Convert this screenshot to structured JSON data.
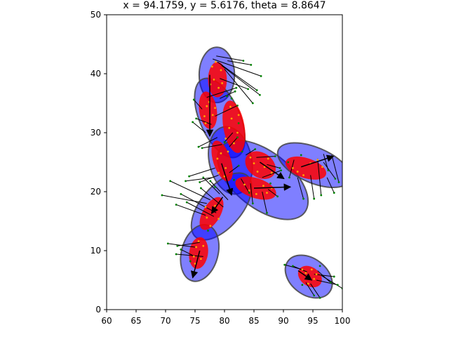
{
  "chart_data": {
    "type": "scatter",
    "title": "x = 94.1759, y = 5.6176, theta = 8.8647",
    "xlabel": "",
    "ylabel": "",
    "xlim": [
      60,
      100
    ],
    "ylim": [
      0,
      50
    ],
    "xticks": [
      "60",
      "65",
      "70",
      "75",
      "80",
      "85",
      "90",
      "95",
      "100"
    ],
    "yticks": [
      "0",
      "10",
      "20",
      "30",
      "40",
      "50"
    ],
    "colors": {
      "outer_fill": "#0000ff",
      "outer_edge": "#444444",
      "inner_fill": "#ff0000",
      "point_color": "#ffa500",
      "green_color": "#008000",
      "arrow_color": "#000000"
    },
    "outer_ellipses": [
      {
        "cx": 78.7,
        "cy": 39.8,
        "rx": 3.0,
        "ry": 4.7,
        "angle": 0
      },
      {
        "cx": 79.2,
        "cy": 32.5,
        "rx": 3.4,
        "ry": 7.2,
        "angle": -24
      },
      {
        "cx": 81.0,
        "cy": 25.3,
        "rx": 3.6,
        "ry": 5.8,
        "angle": -12
      },
      {
        "cx": 86.5,
        "cy": 22.0,
        "rx": 4.8,
        "ry": 9.0,
        "angle": -52
      },
      {
        "cx": 95.2,
        "cy": 24.5,
        "rx": 3.0,
        "ry": 6.6,
        "angle": -67
      },
      {
        "cx": 79.5,
        "cy": 17.5,
        "rx": 3.5,
        "ry": 6.8,
        "angle": 40
      },
      {
        "cx": 75.8,
        "cy": 9.6,
        "rx": 3.1,
        "ry": 4.9,
        "angle": 15
      },
      {
        "cx": 94.3,
        "cy": 5.6,
        "rx": 3.1,
        "ry": 4.4,
        "angle": -53
      }
    ],
    "inner_ellipses": [
      {
        "cx": 78.8,
        "cy": 39.0,
        "rx": 1.6,
        "ry": 3.0,
        "angle": 0
      },
      {
        "cx": 77.2,
        "cy": 33.8,
        "rx": 1.5,
        "ry": 3.2,
        "angle": -8
      },
      {
        "cx": 81.6,
        "cy": 31.0,
        "rx": 1.8,
        "ry": 4.5,
        "angle": -10
      },
      {
        "cx": 79.6,
        "cy": 25.2,
        "rx": 1.5,
        "ry": 3.6,
        "angle": -18
      },
      {
        "cx": 86.1,
        "cy": 24.5,
        "rx": 2.1,
        "ry": 2.8,
        "angle": -55
      },
      {
        "cx": 85.3,
        "cy": 20.6,
        "rx": 1.7,
        "ry": 3.6,
        "angle": -72
      },
      {
        "cx": 93.8,
        "cy": 24.0,
        "rx": 1.7,
        "ry": 3.6,
        "angle": -72
      },
      {
        "cx": 77.8,
        "cy": 16.3,
        "rx": 1.5,
        "ry": 3.1,
        "angle": 30
      },
      {
        "cx": 75.6,
        "cy": 9.6,
        "rx": 1.6,
        "ry": 2.7,
        "angle": 8
      },
      {
        "cx": 94.5,
        "cy": 5.6,
        "rx": 1.6,
        "ry": 2.2,
        "angle": -55
      }
    ],
    "arrows": [
      {
        "x1": 75.8,
        "y1": 10.0,
        "x2": 74.6,
        "y2": 5.4
      },
      {
        "x1": 77.5,
        "y1": 39.8,
        "x2": 77.5,
        "y2": 29.4
      },
      {
        "x1": 79.5,
        "y1": 24.8,
        "x2": 81.2,
        "y2": 19.4
      },
      {
        "x1": 79.7,
        "y1": 19.1,
        "x2": 77.8,
        "y2": 16.3
      },
      {
        "x1": 85.0,
        "y1": 20.6,
        "x2": 91.2,
        "y2": 20.8
      },
      {
        "x1": 93.0,
        "y1": 24.2,
        "x2": 98.5,
        "y2": 26.0
      },
      {
        "x1": 92.5,
        "y1": 6.6,
        "x2": 94.8,
        "y2": 5.0
      },
      {
        "x1": 86.0,
        "y1": 25.0,
        "x2": 90.1,
        "y2": 22.2
      }
    ],
    "points": [
      [
        78.2,
        39.0
      ],
      [
        79.4,
        40.6
      ],
      [
        77.9,
        41.2
      ],
      [
        79.0,
        37.6
      ],
      [
        78.5,
        42.0
      ],
      [
        79.6,
        38.4
      ],
      [
        77.6,
        38.2
      ],
      [
        77.0,
        34.5
      ],
      [
        76.6,
        32.8
      ],
      [
        78.0,
        33.0
      ],
      [
        77.4,
        35.2
      ],
      [
        76.8,
        31.6
      ],
      [
        78.4,
        34.2
      ],
      [
        81.2,
        32.4
      ],
      [
        82.2,
        30.0
      ],
      [
        81.6,
        28.2
      ],
      [
        80.8,
        30.8
      ],
      [
        82.4,
        33.0
      ],
      [
        81.0,
        34.4
      ],
      [
        80.2,
        29.0
      ],
      [
        79.4,
        26.5
      ],
      [
        80.2,
        24.0
      ],
      [
        79.0,
        23.2
      ],
      [
        80.6,
        26.8
      ],
      [
        78.8,
        25.6
      ],
      [
        80.0,
        22.6
      ],
      [
        85.0,
        24.8
      ],
      [
        86.8,
        24.2
      ],
      [
        87.4,
        25.6
      ],
      [
        85.6,
        23.4
      ],
      [
        84.4,
        25.8
      ],
      [
        88.0,
        23.2
      ],
      [
        84.2,
        20.2
      ],
      [
        86.6,
        21.0
      ],
      [
        85.4,
        19.6
      ],
      [
        88.0,
        20.6
      ],
      [
        83.4,
        21.2
      ],
      [
        87.2,
        19.8
      ],
      [
        92.4,
        23.4
      ],
      [
        94.6,
        24.8
      ],
      [
        95.8,
        25.4
      ],
      [
        93.4,
        22.8
      ],
      [
        91.6,
        24.0
      ],
      [
        96.6,
        24.2
      ],
      [
        77.0,
        15.6
      ],
      [
        78.4,
        17.6
      ],
      [
        76.8,
        17.4
      ],
      [
        79.0,
        15.4
      ],
      [
        77.6,
        14.2
      ],
      [
        75.2,
        10.6
      ],
      [
        76.0,
        8.6
      ],
      [
        74.8,
        9.0
      ],
      [
        76.4,
        10.8
      ],
      [
        75.6,
        11.6
      ],
      [
        75.0,
        7.8
      ],
      [
        93.8,
        6.2
      ],
      [
        95.2,
        5.2
      ],
      [
        94.2,
        4.4
      ],
      [
        93.2,
        6.8
      ],
      [
        95.6,
        6.0
      ],
      [
        94.8,
        6.8
      ]
    ],
    "green_lines": [
      [
        78.0,
        42.5,
        86.2,
        39.6
      ],
      [
        78.8,
        42.0,
        85.5,
        37.2
      ],
      [
        79.5,
        41.4,
        86.0,
        36.4
      ],
      [
        80.0,
        40.8,
        84.8,
        35.0
      ],
      [
        79.2,
        39.2,
        84.0,
        37.4
      ],
      [
        80.5,
        42.2,
        84.5,
        41.5
      ],
      [
        78.6,
        43.0,
        83.2,
        42.2
      ],
      [
        77.0,
        36.0,
        82.0,
        37.6
      ],
      [
        76.2,
        34.0,
        74.8,
        35.6
      ],
      [
        77.8,
        31.4,
        75.2,
        32.4
      ],
      [
        76.8,
        30.0,
        74.6,
        31.8
      ],
      [
        79.2,
        35.8,
        81.8,
        37.0
      ],
      [
        78.4,
        32.8,
        82.2,
        34.6
      ],
      [
        81.4,
        30.0,
        80.0,
        28.4
      ],
      [
        80.8,
        27.6,
        82.2,
        29.2
      ],
      [
        79.6,
        28.0,
        76.2,
        27.4
      ],
      [
        78.8,
        29.2,
        75.6,
        27.6
      ],
      [
        78.4,
        24.0,
        74.0,
        22.6
      ],
      [
        79.0,
        22.8,
        75.8,
        21.6
      ],
      [
        78.0,
        22.4,
        73.4,
        21.8
      ],
      [
        80.8,
        23.2,
        82.4,
        24.4
      ],
      [
        83.6,
        26.2,
        85.2,
        27.2
      ],
      [
        85.4,
        25.8,
        88.6,
        26.0
      ],
      [
        86.4,
        22.4,
        89.6,
        23.6
      ],
      [
        87.2,
        24.6,
        89.4,
        24.0
      ],
      [
        86.4,
        20.0,
        87.2,
        16.4
      ],
      [
        84.4,
        21.4,
        84.8,
        18.0
      ],
      [
        87.4,
        20.4,
        89.0,
        19.2
      ],
      [
        82.8,
        22.2,
        84.2,
        19.8
      ],
      [
        92.4,
        22.4,
        93.4,
        18.8
      ],
      [
        94.6,
        22.8,
        95.2,
        18.8
      ],
      [
        96.8,
        25.0,
        98.8,
        22.2
      ],
      [
        97.4,
        22.4,
        98.6,
        19.8
      ],
      [
        96.8,
        26.4,
        97.6,
        23.6
      ],
      [
        91.8,
        25.4,
        91.0,
        22.4
      ],
      [
        98.2,
        26.2,
        99.4,
        21.6
      ],
      [
        95.8,
        25.6,
        96.4,
        19.4
      ],
      [
        77.6,
        18.6,
        70.8,
        21.8
      ],
      [
        77.0,
        18.0,
        69.4,
        19.4
      ],
      [
        78.6,
        16.4,
        72.6,
        19.6
      ],
      [
        79.8,
        17.4,
        76.0,
        20.6
      ],
      [
        78.2,
        15.8,
        73.6,
        18.2
      ],
      [
        76.8,
        16.0,
        71.8,
        17.8
      ],
      [
        80.6,
        18.6,
        77.6,
        21.8
      ],
      [
        79.2,
        19.6,
        76.4,
        22.4
      ],
      [
        75.0,
        10.6,
        70.4,
        11.2
      ],
      [
        75.8,
        11.4,
        72.0,
        10.8
      ],
      [
        74.6,
        9.2,
        72.6,
        10.2
      ],
      [
        76.4,
        9.0,
        71.8,
        9.4
      ],
      [
        93.2,
        6.8,
        90.2,
        7.6
      ],
      [
        94.0,
        6.4,
        91.6,
        7.4
      ],
      [
        95.2,
        6.0,
        98.6,
        5.6
      ],
      [
        95.6,
        5.0,
        99.2,
        4.2
      ],
      [
        94.6,
        4.4,
        96.2,
        2.0
      ],
      [
        93.8,
        4.6,
        95.2,
        2.4
      ],
      [
        95.8,
        6.6,
        98.0,
        4.6
      ],
      [
        96.4,
        5.8,
        100.0,
        3.6
      ]
    ],
    "green_dots": [
      [
        86.2,
        39.6
      ],
      [
        85.5,
        37.2
      ],
      [
        86.0,
        36.4
      ],
      [
        84.8,
        35.0
      ],
      [
        84.0,
        37.4
      ],
      [
        84.5,
        41.5
      ],
      [
        83.2,
        42.2
      ],
      [
        82.0,
        37.6
      ],
      [
        74.8,
        35.6
      ],
      [
        75.2,
        32.4
      ],
      [
        74.6,
        31.8
      ],
      [
        81.8,
        37.0
      ],
      [
        82.2,
        34.6
      ],
      [
        80.0,
        28.4
      ],
      [
        82.2,
        29.2
      ],
      [
        76.2,
        27.4
      ],
      [
        75.6,
        27.6
      ],
      [
        74.0,
        22.6
      ],
      [
        75.8,
        21.6
      ],
      [
        73.4,
        21.8
      ],
      [
        82.4,
        24.4
      ],
      [
        85.2,
        27.2
      ],
      [
        88.6,
        26.0
      ],
      [
        89.6,
        23.6
      ],
      [
        89.4,
        24.0
      ],
      [
        87.2,
        16.4
      ],
      [
        84.8,
        18.0
      ],
      [
        89.0,
        19.2
      ],
      [
        84.2,
        19.8
      ],
      [
        93.4,
        18.8
      ],
      [
        95.2,
        18.8
      ],
      [
        98.8,
        22.2
      ],
      [
        98.6,
        19.8
      ],
      [
        97.6,
        23.6
      ],
      [
        91.0,
        22.4
      ],
      [
        99.4,
        21.6
      ],
      [
        96.4,
        19.4
      ],
      [
        70.8,
        21.8
      ],
      [
        69.4,
        19.4
      ],
      [
        72.6,
        19.6
      ],
      [
        76.0,
        20.6
      ],
      [
        73.6,
        18.2
      ],
      [
        71.8,
        17.8
      ],
      [
        77.6,
        21.8
      ],
      [
        76.4,
        22.4
      ],
      [
        70.4,
        11.2
      ],
      [
        72.0,
        10.8
      ],
      [
        72.6,
        10.2
      ],
      [
        71.8,
        9.4
      ],
      [
        90.2,
        7.6
      ],
      [
        91.6,
        7.4
      ],
      [
        98.6,
        5.6
      ],
      [
        99.2,
        4.2
      ],
      [
        96.2,
        2.0
      ],
      [
        95.2,
        2.4
      ],
      [
        98.0,
        4.6
      ],
      [
        100.0,
        3.6
      ],
      [
        82.4,
        31.6
      ],
      [
        81.2,
        35.8
      ],
      [
        80.4,
        36.2
      ],
      [
        83.0,
        26.8
      ],
      [
        81.6,
        22.0
      ],
      [
        87.8,
        21.4
      ],
      [
        90.8,
        25.0
      ],
      [
        93.0,
        26.2
      ],
      [
        78.4,
        20.8
      ],
      [
        80.6,
        20.2
      ],
      [
        77.2,
        13.4
      ],
      [
        74.2,
        8.2
      ],
      [
        93.2,
        4.2
      ],
      [
        96.2,
        7.4
      ]
    ]
  }
}
